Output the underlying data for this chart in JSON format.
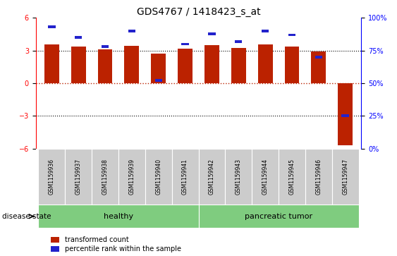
{
  "title": "GDS4767 / 1418423_s_at",
  "samples": [
    "GSM1159936",
    "GSM1159937",
    "GSM1159938",
    "GSM1159939",
    "GSM1159940",
    "GSM1159941",
    "GSM1159942",
    "GSM1159943",
    "GSM1159944",
    "GSM1159945",
    "GSM1159946",
    "GSM1159947"
  ],
  "transformed_counts": [
    3.55,
    3.35,
    3.12,
    3.45,
    2.72,
    3.15,
    3.5,
    3.22,
    3.55,
    3.38,
    2.9,
    -5.7
  ],
  "percentile_ranks": [
    93,
    85,
    78,
    90,
    52,
    80,
    88,
    82,
    90,
    87,
    70,
    25
  ],
  "bar_color_red": "#BB2200",
  "bar_color_blue": "#2222CC",
  "ylim_left": [
    -6,
    6
  ],
  "ylim_right": [
    0,
    100
  ],
  "yticks_left": [
    -6,
    -3,
    0,
    3,
    6
  ],
  "yticks_right": [
    0,
    25,
    50,
    75,
    100
  ],
  "label_bg_color": "#cccccc",
  "legend_labels": [
    "transformed count",
    "percentile rank within the sample"
  ],
  "disease_state_label": "disease state",
  "title_fontsize": 10,
  "tick_fontsize": 7,
  "bar_width": 0.55,
  "healthy_count": 6,
  "green_color": "#7FCC7F"
}
